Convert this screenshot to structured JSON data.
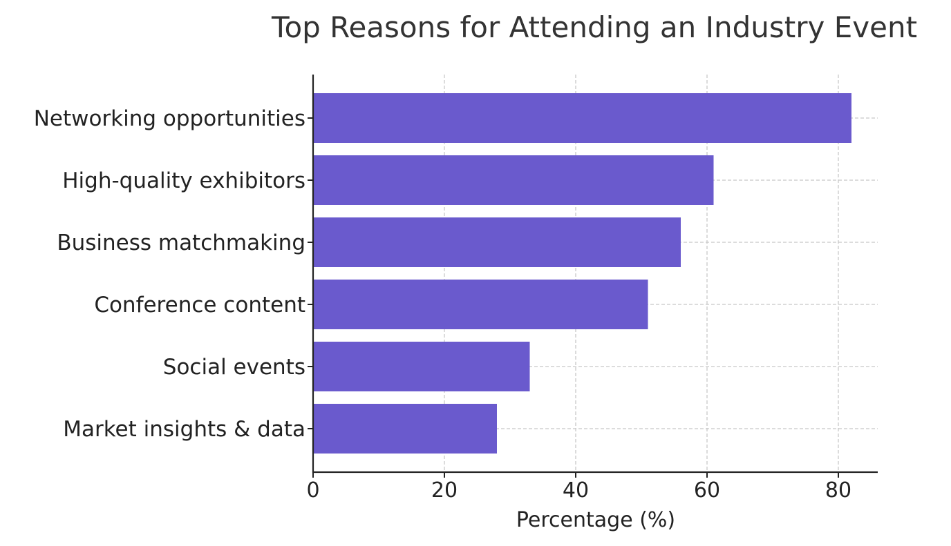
{
  "chart_data": {
    "type": "bar",
    "orientation": "horizontal",
    "title": "Top Reasons for Attending an Industry Event",
    "xlabel": "Percentage (%)",
    "ylabel": "",
    "categories": [
      "Networking opportunities",
      "High-quality exhibitors",
      "Business matchmaking",
      "Conference content",
      "Social events",
      "Market insights & data"
    ],
    "values": [
      82,
      61,
      56,
      51,
      33,
      28
    ],
    "xlim": [
      0,
      86
    ],
    "xticks": [
      0,
      20,
      40,
      60,
      80
    ],
    "xtick_labels": [
      "0",
      "20",
      "40",
      "60",
      "80"
    ],
    "bar_color": "#6a5acd",
    "grid": true,
    "legend": "none"
  }
}
